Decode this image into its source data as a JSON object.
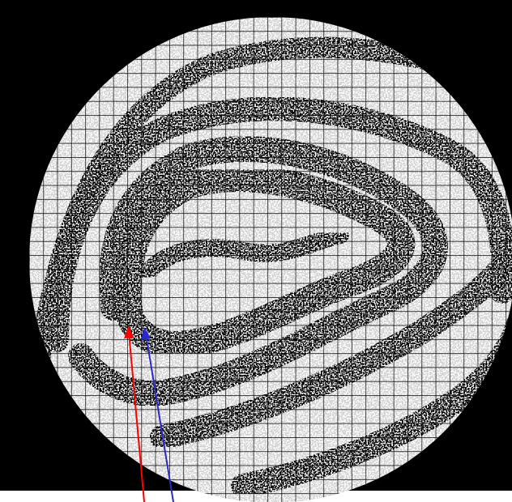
{
  "figure": {
    "background_color": "#000000",
    "disk_color": "#ffffff",
    "grid_color": "#000000",
    "fringe_color": "#000000",
    "arrow_colors": {
      "red": "#ff0000",
      "blue": "#2a2acc"
    }
  }
}
